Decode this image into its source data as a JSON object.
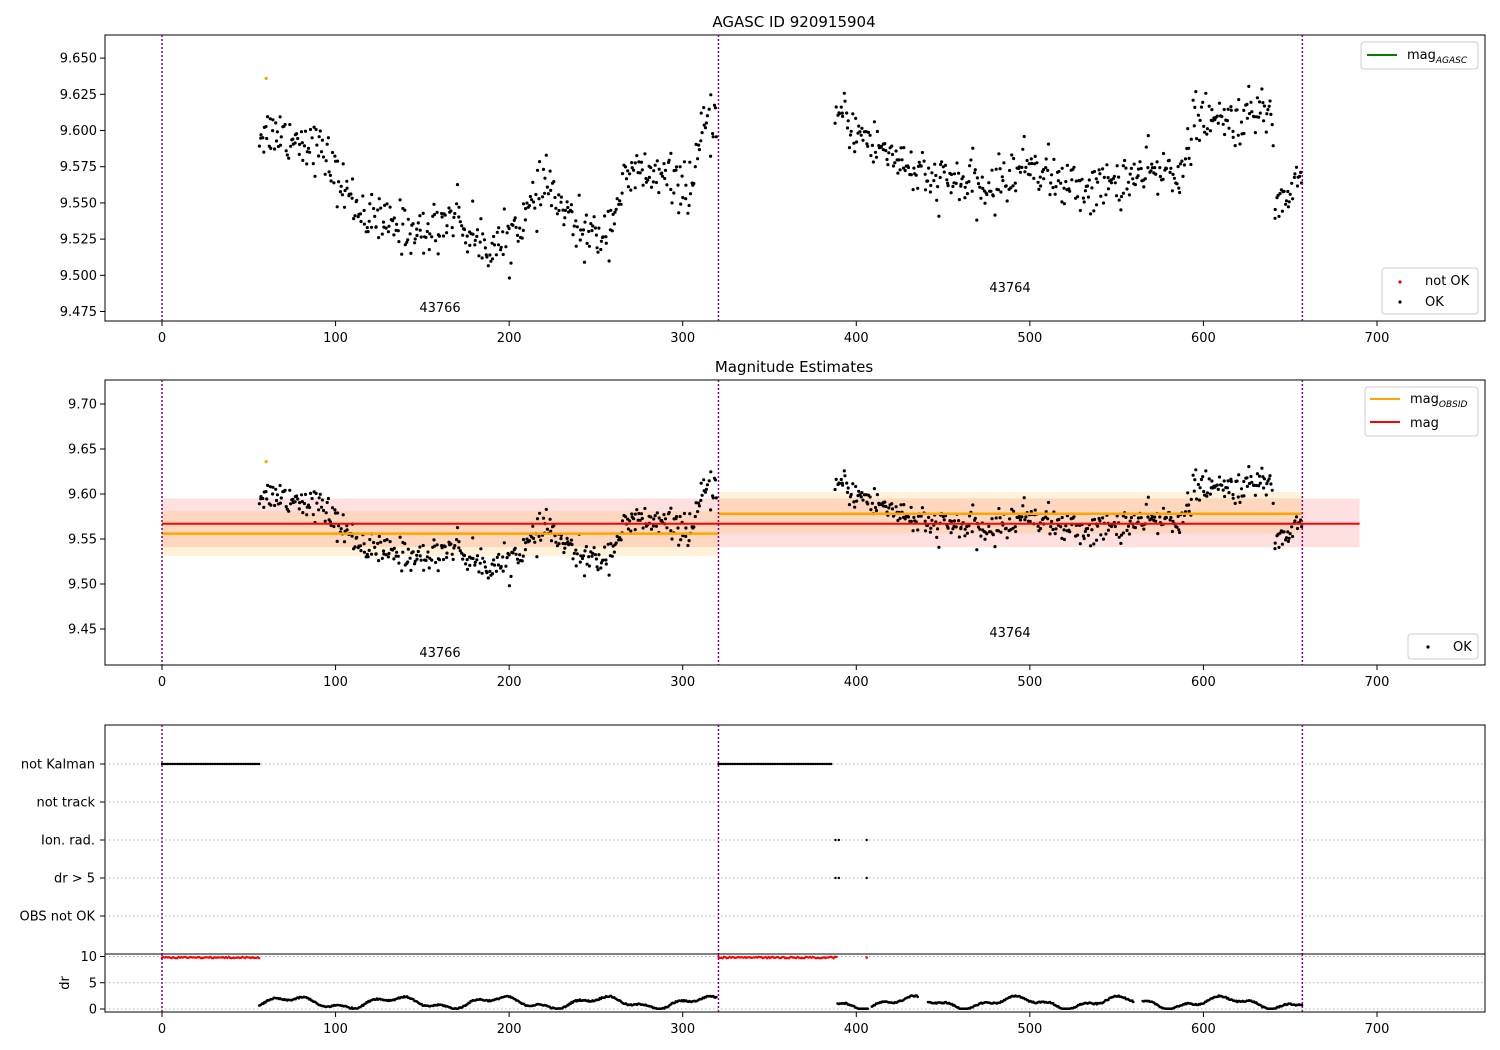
{
  "figure": {
    "title1": "AGASC ID 920915904",
    "title2": "Magnitude Estimates"
  },
  "chart_data": [
    {
      "type": "scatter",
      "title": "AGASC ID 920915904",
      "xlim": [
        -33,
        760
      ],
      "ylim": [
        9.467,
        9.667
      ],
      "xticks": [
        "0",
        "100",
        "200",
        "300",
        "400",
        "500",
        "600",
        "700"
      ],
      "yticks": [
        "9.475",
        "9.500",
        "9.525",
        "9.550",
        "9.575",
        "9.600",
        "9.625",
        "9.650"
      ],
      "obs_boundaries": [
        0,
        320.6,
        657
      ],
      "obs_labels": [
        "43766",
        "43764"
      ],
      "legend_lines": [
        {
          "name": "mag",
          "sub": "AGASC",
          "color": "#008000"
        }
      ],
      "legend_points": [
        {
          "name": "not OK",
          "color": "#ff0000"
        },
        {
          "name": "OK",
          "color": "#000000"
        }
      ],
      "outlier": {
        "x": 60,
        "y": 9.636,
        "color": "#ffa500"
      }
    },
    {
      "type": "scatter",
      "title": "Magnitude Estimates",
      "xlim": [
        -33,
        760
      ],
      "ylim": [
        9.407,
        9.724
      ],
      "xticks": [
        "0",
        "100",
        "200",
        "300",
        "400",
        "500",
        "600",
        "700"
      ],
      "yticks": [
        "9.45",
        "9.50",
        "9.55",
        "9.60",
        "9.65",
        "9.70"
      ],
      "obs_labels": [
        "43766",
        "43764"
      ],
      "obs_mags": [
        {
          "x0": 0,
          "x1": 320.6,
          "mag": 9.556,
          "band": [
            9.531,
            9.581
          ]
        },
        {
          "x0": 320.6,
          "x1": 657,
          "mag": 9.578,
          "band": [
            9.556,
            9.602
          ]
        }
      ],
      "mean_mag": {
        "x0": 0,
        "x1": 690,
        "mag": 9.567,
        "band": [
          9.541,
          9.595
        ]
      },
      "legend_lines": [
        {
          "name": "mag",
          "sub": "OBSID",
          "color": "#ffa500"
        },
        {
          "name": "mag",
          "sub": "",
          "color": "#ff0000"
        }
      ],
      "legend_points": [
        {
          "name": "OK",
          "color": "#000000"
        }
      ]
    },
    {
      "type": "scatter",
      "title": "",
      "flags": [
        "not Kalman",
        "not track",
        "Ion. rad.",
        "dr > 5",
        "OBS not OK"
      ],
      "flag_segments": [
        {
          "flag": "not Kalman",
          "ranges": [
            [
              0,
              56
            ],
            [
              320.6,
              386
            ]
          ]
        },
        {
          "flag": "Ion. rad.",
          "points": [
            388,
            390,
            406
          ]
        },
        {
          "flag": "dr > 5",
          "points": [
            388,
            390,
            406
          ]
        }
      ]
    },
    {
      "type": "scatter",
      "ylabel": "dr",
      "yticks": [
        "0",
        "5",
        "10"
      ],
      "ylim": [
        -0.5,
        10.5
      ],
      "xticks": [
        "0",
        "100",
        "200",
        "300",
        "400",
        "500",
        "600",
        "700"
      ],
      "clipped_ranges": [
        [
          0,
          56
        ],
        [
          320.6,
          389
        ]
      ],
      "clipped_points": [
        406
      ],
      "gaps": [
        [
          386,
          389
        ],
        [
          407,
          409
        ],
        [
          436,
          441
        ],
        [
          560,
          565
        ]
      ]
    }
  ]
}
